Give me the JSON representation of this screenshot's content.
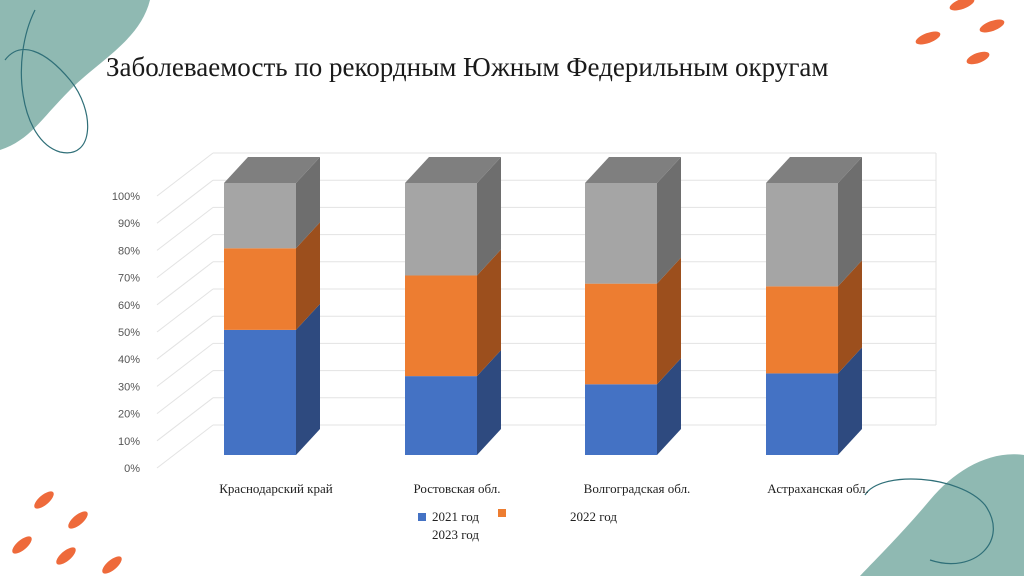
{
  "slide": {
    "title": "Заболеваемость по рекордным Южным Федерильным округам"
  },
  "chart_data": {
    "type": "bar",
    "stacked": "percent",
    "style": "3d-column",
    "categories": [
      "Краснодарский край",
      "Ростовская обл.",
      "Волгоградская обл.",
      "Астраханская обл."
    ],
    "series": [
      {
        "name": "2021 год",
        "values": [
          46,
          29,
          26,
          30
        ],
        "color": "#4472c4",
        "side_color": "#2e4a7f"
      },
      {
        "name": "2022 год",
        "values": [
          30,
          37,
          37,
          32
        ],
        "color": "#ed7d31",
        "side_color": "#9c4f1d"
      },
      {
        "name": "2023 год",
        "values": [
          24,
          34,
          37,
          38
        ],
        "color": "#a5a5a5",
        "side_color": "#6e6e6e",
        "top_color": "#7f7f7f"
      }
    ],
    "y_ticks": [
      "0%",
      "10%",
      "20%",
      "30%",
      "40%",
      "50%",
      "60%",
      "70%",
      "80%",
      "90%",
      "100%"
    ],
    "ylim": [
      0,
      100
    ],
    "grid": true,
    "legend_position": "bottom"
  },
  "decor": {
    "teal": "#8fb9b2",
    "accent": "#ee6a3b",
    "line": "#2f6f78"
  }
}
